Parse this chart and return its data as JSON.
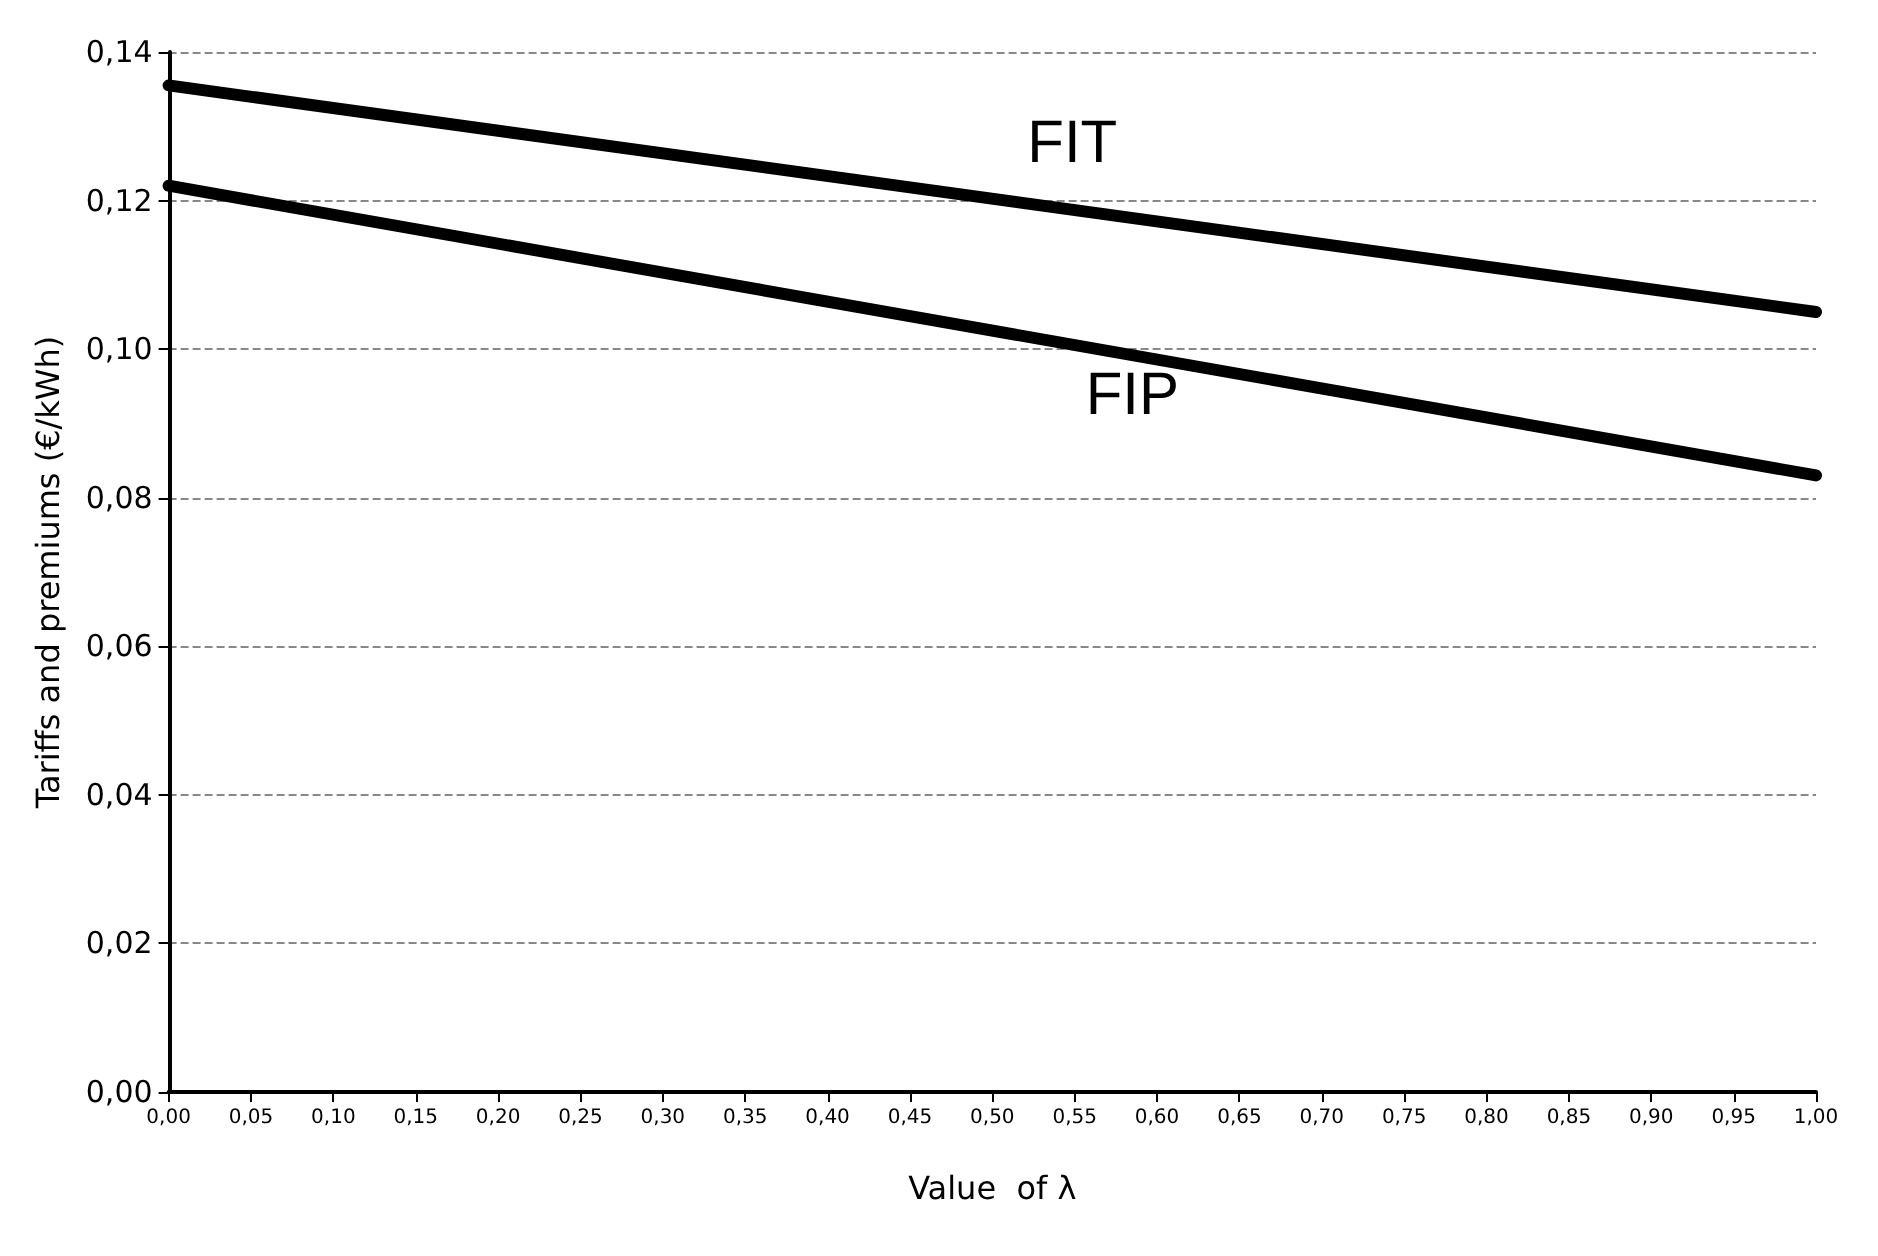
{
  "chart_data": {
    "type": "line",
    "xlabel": "Value  of λ",
    "ylabel": "Tariffs and premiums (€/kWh)",
    "x": [
      0,
      1
    ],
    "series": [
      {
        "name": "FIT",
        "color": "#000000",
        "values": [
          0.1355,
          0.105
        ]
      },
      {
        "name": "FIP",
        "color": "#000000",
        "values": [
          0.122,
          0.083
        ]
      }
    ],
    "xlim": [
      0,
      1
    ],
    "xticks": [
      {
        "value": 0,
        "label": "0,00"
      },
      {
        "value": 0.05,
        "label": "0,05"
      },
      {
        "value": 0.1,
        "label": "0,10"
      },
      {
        "value": 0.15,
        "label": "0,15"
      },
      {
        "value": 0.2,
        "label": "0,20"
      },
      {
        "value": 0.25,
        "label": "0,25"
      },
      {
        "value": 0.3,
        "label": "0,30"
      },
      {
        "value": 0.35,
        "label": "0,35"
      },
      {
        "value": 0.4,
        "label": "0,40"
      },
      {
        "value": 0.45,
        "label": "0,45"
      },
      {
        "value": 0.5,
        "label": "0,50"
      },
      {
        "value": 0.55,
        "label": "0,55"
      },
      {
        "value": 0.6,
        "label": "0,60"
      },
      {
        "value": 0.65,
        "label": "0,65"
      },
      {
        "value": 0.7,
        "label": "0,70"
      },
      {
        "value": 0.75,
        "label": "0,75"
      },
      {
        "value": 0.8,
        "label": "0,80"
      },
      {
        "value": 0.85,
        "label": "0,85"
      },
      {
        "value": 0.9,
        "label": "0,90"
      },
      {
        "value": 0.95,
        "label": "0,95"
      },
      {
        "value": 1,
        "label": "1,00"
      }
    ],
    "ylim": [
      0,
      0.14
    ],
    "yticks": [
      {
        "value": 0,
        "label": "0,00"
      },
      {
        "value": 0.02,
        "label": "0,02"
      },
      {
        "value": 0.04,
        "label": "0,04"
      },
      {
        "value": 0.06,
        "label": "0,06"
      },
      {
        "value": 0.08,
        "label": "0,08"
      },
      {
        "value": 0.1,
        "label": "0,10"
      },
      {
        "value": 0.12,
        "label": "0,12"
      },
      {
        "value": 0.14,
        "label": "0,14"
      }
    ],
    "grid": "y",
    "marker": "none",
    "line_style": "solid"
  }
}
